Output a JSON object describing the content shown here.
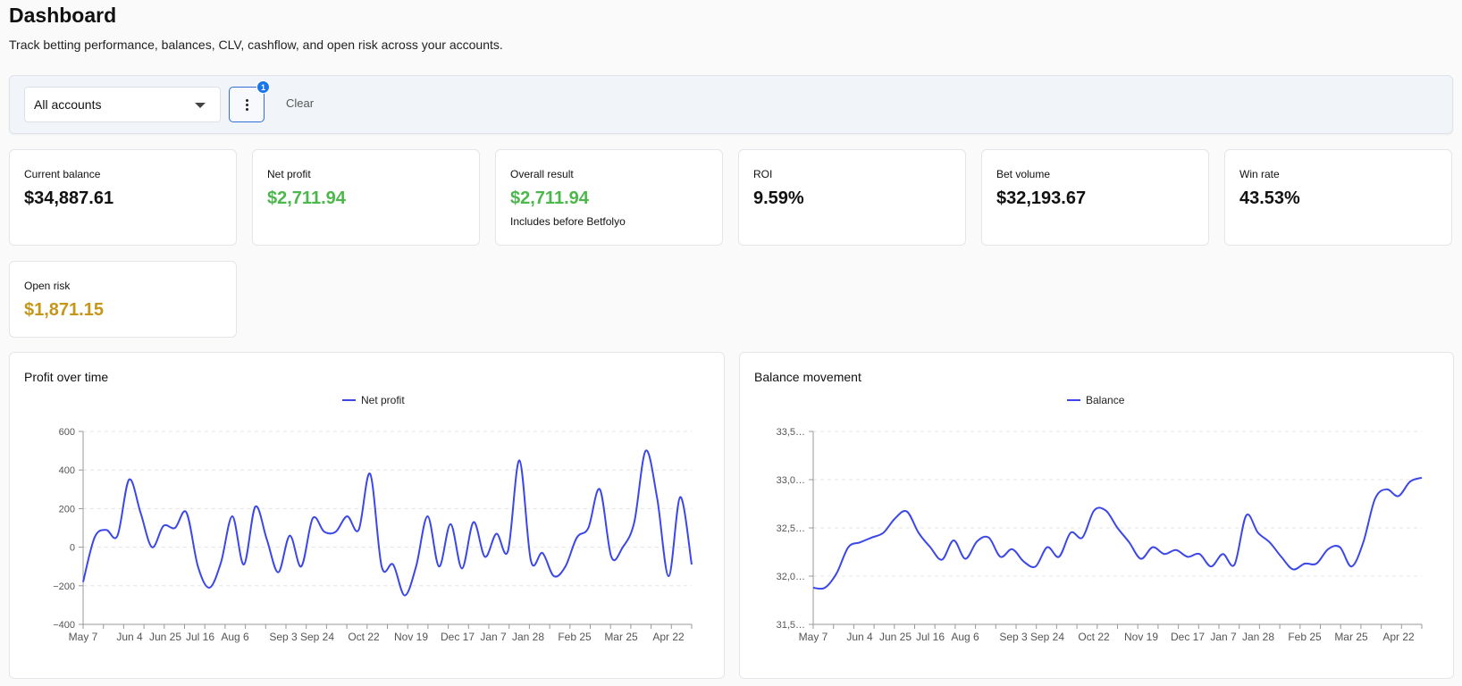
{
  "header": {
    "title": "Dashboard",
    "subtitle": "Track betting performance, balances, CLV, cashflow, and open risk across your accounts."
  },
  "filters": {
    "account_select_value": "All accounts",
    "more_badge_count": "1",
    "clear_label": "Clear"
  },
  "icons": {
    "account_caret": "chevron-down-icon",
    "more": "kebab-menu-icon"
  },
  "colors": {
    "positive": "#4cb84c",
    "warning": "#c6961a",
    "series_line": "#3b47e8",
    "accent": "#2f6fd6"
  },
  "stats": [
    {
      "label": "Current balance",
      "value": "$34,887.61",
      "tone": "neutral"
    },
    {
      "label": "Net profit",
      "value": "$2,711.94",
      "tone": "positive"
    },
    {
      "label": "Overall result",
      "value": "$2,711.94",
      "tone": "positive",
      "note": "Includes before Betfolyo"
    },
    {
      "label": "ROI",
      "value": "9.59%",
      "tone": "neutral"
    },
    {
      "label": "Bet volume",
      "value": "$32,193.67",
      "tone": "neutral"
    },
    {
      "label": "Win rate",
      "value": "43.53%",
      "tone": "neutral"
    },
    {
      "label": "Open risk",
      "value": "$1,871.15",
      "tone": "warning"
    }
  ],
  "chart_data": [
    {
      "title": "Profit over time",
      "type": "line",
      "grid": true,
      "legend_position": "top-center",
      "ylim": [
        -400,
        600
      ],
      "y_ticks": [
        "600",
        "400",
        "200",
        "0",
        "−200",
        "−400"
      ],
      "x_tick_labels": [
        "May 7",
        "Jun 4",
        "Jun 25",
        "Jul 16",
        "Aug 6",
        "Sep 3",
        "Sep 24",
        "Oct 22",
        "Nov 19",
        "Dec 17",
        "Jan 7",
        "Jan 28",
        "Feb 25",
        "Mar 25",
        "Apr 22"
      ],
      "series": [
        {
          "name": "Net profit",
          "values": [
            -180,
            50,
            90,
            60,
            350,
            180,
            0,
            110,
            100,
            180,
            -100,
            -210,
            -80,
            160,
            -90,
            210,
            40,
            -130,
            60,
            -100,
            150,
            80,
            80,
            160,
            90,
            380,
            -100,
            -90,
            -250,
            -100,
            160,
            -100,
            120,
            -110,
            130,
            -50,
            70,
            -20,
            450,
            -70,
            -30,
            -150,
            -100,
            50,
            100,
            300,
            -50,
            0,
            130,
            500,
            250,
            -150,
            260,
            -90
          ]
        }
      ]
    },
    {
      "title": "Balance movement",
      "type": "line",
      "grid": true,
      "legend_position": "top-center",
      "ylim": [
        31500,
        33500
      ],
      "y_ticks": [
        "33,5…",
        "33,0…",
        "32,5…",
        "32,0…",
        "31,5…"
      ],
      "x_tick_labels": [
        "May 7",
        "Jun 4",
        "Jun 25",
        "Jul 16",
        "Aug 6",
        "Sep 3",
        "Sep 24",
        "Oct 22",
        "Nov 19",
        "Dec 17",
        "Jan 7",
        "Jan 28",
        "Feb 25",
        "Mar 25",
        "Apr 22"
      ],
      "series": [
        {
          "name": "Balance",
          "values": [
            31880,
            31880,
            32030,
            32300,
            32350,
            32400,
            32450,
            32600,
            32670,
            32450,
            32300,
            32170,
            32370,
            32180,
            32360,
            32400,
            32200,
            32280,
            32150,
            32100,
            32300,
            32200,
            32450,
            32400,
            32680,
            32680,
            32500,
            32350,
            32180,
            32300,
            32230,
            32270,
            32200,
            32230,
            32100,
            32230,
            32120,
            32630,
            32450,
            32350,
            32200,
            32070,
            32130,
            32130,
            32280,
            32300,
            32100,
            32350,
            32800,
            32900,
            32830,
            32980,
            33020
          ]
        }
      ]
    }
  ]
}
